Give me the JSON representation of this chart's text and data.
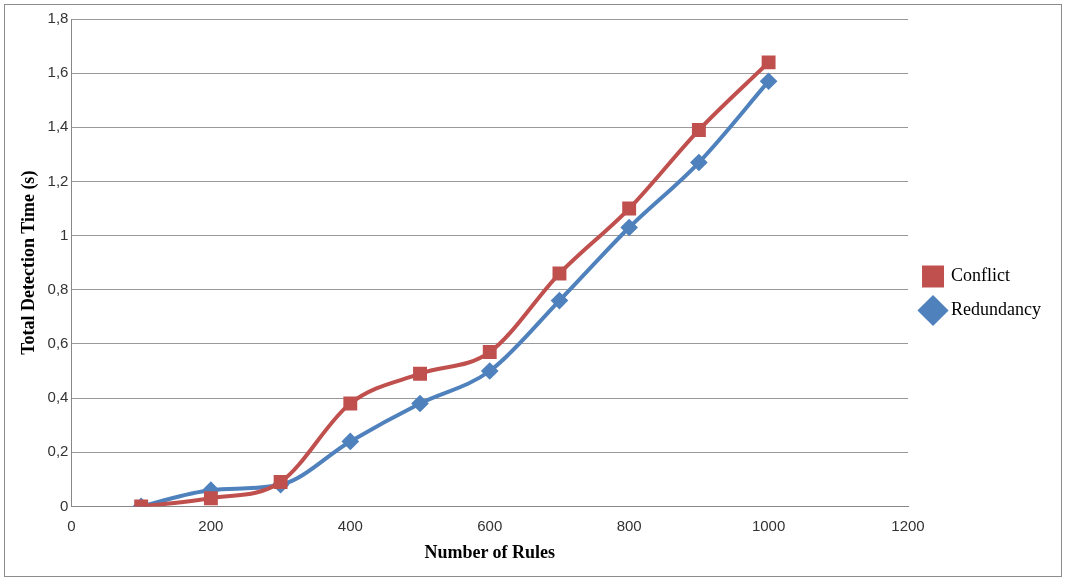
{
  "chart_data": {
    "type": "line",
    "xlabel": "Number of Rules",
    "ylabel": "Total Detection Time (s)",
    "x": [
      100,
      200,
      300,
      400,
      500,
      600,
      700,
      800,
      900,
      1000
    ],
    "series": [
      {
        "name": "Conflict",
        "color": "#c0504d",
        "marker": "square",
        "values": [
          0,
          0.03,
          0.09,
          0.38,
          0.49,
          0.57,
          0.86,
          1.1,
          1.39,
          1.64
        ]
      },
      {
        "name": "Redundancy",
        "color": "#4f81bd",
        "marker": "diamond",
        "values": [
          0,
          0.06,
          0.08,
          0.24,
          0.38,
          0.5,
          0.76,
          1.03,
          1.27,
          1.57
        ]
      }
    ],
    "xlim": [
      0,
      1200
    ],
    "xticks": [
      0,
      200,
      400,
      600,
      800,
      1000,
      1200
    ],
    "ylim": [
      0,
      1.8
    ],
    "yticks": [
      0,
      {
        "value": 0.2,
        "label": "0,2"
      },
      {
        "value": 0.4,
        "label": "0,4"
      },
      {
        "value": 0.6,
        "label": "0,6"
      },
      {
        "value": 0.8,
        "label": "0,8"
      },
      1,
      {
        "value": 1.2,
        "label": "1,2"
      },
      {
        "value": 1.4,
        "label": "1,4"
      },
      {
        "value": 1.6,
        "label": "1,6"
      },
      {
        "value": 1.8,
        "label": "1,8"
      }
    ],
    "grid": "y",
    "legend": "right",
    "line_style": "solid"
  }
}
